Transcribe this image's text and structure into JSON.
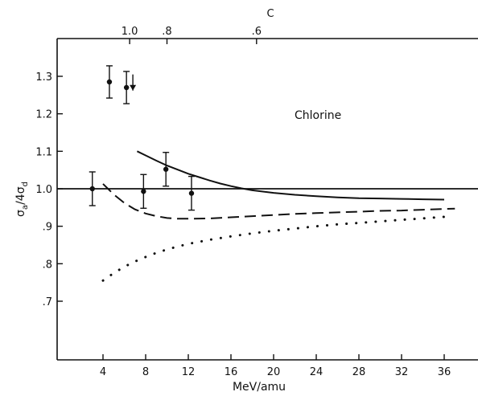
{
  "chart_data": {
    "type": "scatter",
    "title": "",
    "annotation": "Chlorine",
    "xlabel": "MeV/amu",
    "ylabel_main": "σ",
    "ylabel_sub1": "a",
    "ylabel_div": "/4",
    "ylabel_sub2": "d",
    "xlim": [
      0,
      39
    ],
    "ylim": [
      0.6,
      1.33
    ],
    "grid": false,
    "x_ticks": [
      4,
      8,
      12,
      16,
      20,
      24,
      28,
      32,
      36
    ],
    "x_tick_labels": [
      "4",
      "8",
      "12",
      "16",
      "20",
      "24",
      "28",
      "32",
      "36"
    ],
    "y_ticks": [
      0.7,
      0.8,
      0.9,
      1.0,
      1.1,
      1.2,
      1.3
    ],
    "y_tick_labels": [
      ".7",
      ".8",
      ".9",
      "1.0",
      "1.1",
      "1.2",
      "1.3"
    ],
    "top_axis": {
      "label": "C",
      "ticks": [
        {
          "x": 6.5,
          "label": "1.0"
        },
        {
          "x": 10.0,
          "label": ".8"
        },
        {
          "x": 18.4,
          "label": ".6"
        }
      ]
    },
    "reference_line": {
      "y": 1.0
    },
    "points": [
      {
        "x": 4.6,
        "y": 1.285,
        "yerr": 0.043
      },
      {
        "x": 6.2,
        "y": 1.27,
        "yerr": 0.043
      },
      {
        "x": 3.0,
        "y": 1.0,
        "yerr": 0.045
      },
      {
        "x": 7.8,
        "y": 0.993,
        "yerr": 0.045
      },
      {
        "x": 9.9,
        "y": 1.052,
        "yerr": 0.045
      },
      {
        "x": 12.3,
        "y": 0.988,
        "yerr": 0.045
      }
    ],
    "arrow_marker": {
      "x": 6.8,
      "y_from": 1.305,
      "y_to": 1.262
    },
    "series": [
      {
        "style": "solid",
        "x": [
          7.2,
          8,
          9,
          10,
          11,
          12,
          13,
          14,
          15,
          16,
          17,
          18,
          20,
          22,
          24,
          26,
          28,
          30,
          32,
          34,
          36
        ],
        "y": [
          1.1,
          1.089,
          1.075,
          1.062,
          1.051,
          1.04,
          1.031,
          1.022,
          1.014,
          1.007,
          1.001,
          0.996,
          0.989,
          0.984,
          0.98,
          0.977,
          0.975,
          0.974,
          0.973,
          0.972,
          0.971
        ]
      },
      {
        "style": "dashed",
        "x": [
          4.0,
          5,
          6,
          7,
          8,
          9,
          10,
          11,
          12,
          14,
          16,
          18,
          20,
          22,
          24,
          26,
          28,
          30,
          32,
          34,
          36,
          37
        ],
        "y": [
          1.013,
          0.985,
          0.962,
          0.945,
          0.934,
          0.927,
          0.922,
          0.92,
          0.92,
          0.921,
          0.924,
          0.927,
          0.93,
          0.933,
          0.935,
          0.937,
          0.939,
          0.941,
          0.942,
          0.944,
          0.946,
          0.947
        ]
      },
      {
        "style": "dotted",
        "x": [
          4.0,
          5,
          6,
          7,
          8,
          9,
          10,
          11,
          12,
          14,
          16,
          18,
          20,
          22,
          24,
          26,
          28,
          30,
          32,
          34,
          36
        ],
        "y": [
          0.755,
          0.775,
          0.792,
          0.806,
          0.818,
          0.829,
          0.838,
          0.846,
          0.853,
          0.864,
          0.873,
          0.881,
          0.888,
          0.894,
          0.9,
          0.905,
          0.909,
          0.913,
          0.917,
          0.921,
          0.925
        ]
      }
    ]
  }
}
